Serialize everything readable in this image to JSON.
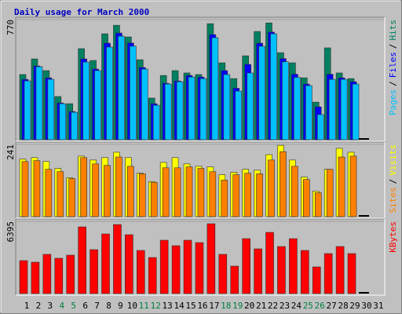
{
  "chart_data": [
    {
      "type": "bar",
      "title": "Daily usage for March 2000",
      "ylim": [
        0,
        770
      ],
      "yticks": [
        770
      ],
      "legend_separator": "/",
      "series": [
        {
          "name": "Pages",
          "color": "#00c0ff",
          "values": [
            377,
            468,
            387,
            231,
            176,
            498,
            443,
            594,
            664,
            600,
            453,
            221,
            357,
            372,
            402,
            392,
            654,
            418,
            312,
            428,
            599,
            679,
            500,
            400,
            347,
            161,
            387,
            387,
            357,
            0,
            null
          ]
        },
        {
          "name": "Files",
          "color": "#0000ff",
          "values": [
            387,
            473,
            397,
            236,
            181,
            518,
            453,
            619,
            684,
            620,
            463,
            231,
            362,
            377,
            412,
            402,
            674,
            443,
            330,
            483,
            619,
            690,
            520,
            420,
            357,
            211,
            420,
            397,
            372,
            0,
            null
          ]
        },
        {
          "name": "Hits",
          "color": "#008060",
          "values": [
            418,
            518,
            443,
            277,
            231,
            584,
            508,
            679,
            734,
            659,
            513,
            267,
            412,
            443,
            428,
            418,
            744,
            493,
            392,
            538,
            694,
            749,
            558,
            493,
            397,
            241,
            589,
            428,
            392,
            0,
            null
          ]
        }
      ]
    },
    {
      "type": "bar",
      "ylim": [
        0,
        241
      ],
      "yticks": [
        241
      ],
      "legend_separator": "/",
      "series": [
        {
          "name": "Sites",
          "color": "#ff8000",
          "values": [
            184,
            187,
            158,
            150,
            127,
            197,
            176,
            171,
            199,
            168,
            143,
            114,
            163,
            163,
            166,
            161,
            150,
            122,
            140,
            145,
            143,
            189,
            217,
            168,
            124,
            80,
            158,
            199,
            202,
            0,
            null
          ]
        },
        {
          "name": "Visits",
          "color": "#ffff00",
          "values": [
            192,
            197,
            184,
            161,
            130,
            202,
            189,
            197,
            215,
            197,
            145,
            117,
            181,
            197,
            176,
            168,
            166,
            140,
            148,
            158,
            155,
            207,
            238,
            189,
            132,
            85,
            158,
            228,
            215,
            0,
            null
          ]
        }
      ]
    },
    {
      "type": "bar",
      "ylim": [
        0,
        6395
      ],
      "yticks": [
        6395
      ],
      "categories": [
        "1",
        "2",
        "3",
        "4",
        "5",
        "6",
        "7",
        "8",
        "9",
        "10",
        "11",
        "12",
        "13",
        "14",
        "15",
        "16",
        "17",
        "18",
        "19",
        "20",
        "21",
        "22",
        "23",
        "24",
        "25",
        "26",
        "27",
        "28",
        "29",
        "30",
        "31"
      ],
      "category_colors": [
        "#000000",
        "#000000",
        "#000000",
        "#008040",
        "#008040",
        "#000000",
        "#000000",
        "#000000",
        "#000000",
        "#000000",
        "#008040",
        "#008040",
        "#000000",
        "#000000",
        "#000000",
        "#000000",
        "#000000",
        "#008040",
        "#008040",
        "#000000",
        "#000000",
        "#000000",
        "#000000",
        "#000000",
        "#008040",
        "#008040",
        "#000000",
        "#000000",
        "#000000",
        "#000000",
        "#000000"
      ],
      "series": [
        {
          "name": "KBytes",
          "color": "#ff0000",
          "values": [
            2919,
            2780,
            3475,
            3127,
            3405,
            5907,
            3892,
            5282,
            6116,
            5213,
            3822,
            3197,
            4726,
            4239,
            4726,
            4517,
            6186,
            3475,
            2433,
            4865,
            3961,
            5421,
            4170,
            4865,
            3822,
            2363,
            3544,
            4170,
            3544,
            0,
            null
          ]
        }
      ]
    }
  ]
}
